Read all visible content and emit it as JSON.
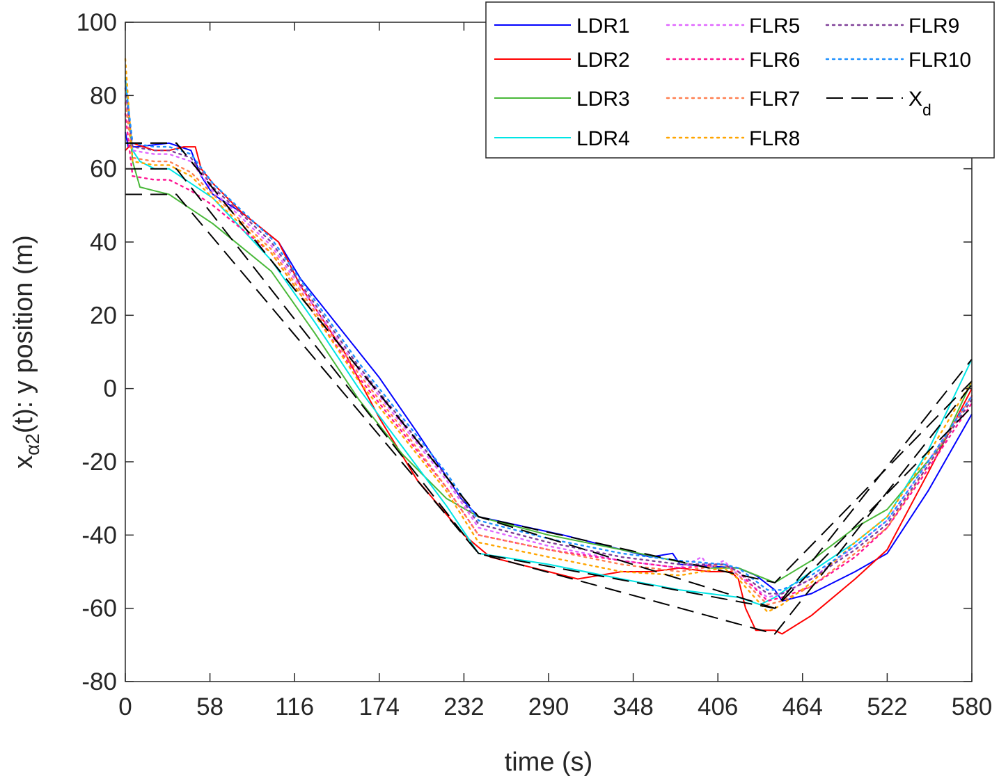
{
  "chart_data": {
    "type": "line",
    "title": "",
    "xlabel": "time (s)",
    "ylabel": {
      "main": "x",
      "sub": "α2",
      "rest": "(t): y position (m)"
    },
    "xlim": [
      0,
      580
    ],
    "ylim": [
      -80,
      100
    ],
    "xticks": [
      0,
      58,
      116,
      174,
      232,
      290,
      348,
      406,
      464,
      522,
      580
    ],
    "yticks": [
      -80,
      -60,
      -40,
      -20,
      0,
      20,
      40,
      60,
      80,
      100
    ],
    "xtick_labels": [
      "0",
      "58",
      "116",
      "174",
      "232",
      "290",
      "348",
      "406",
      "464",
      "522",
      "580"
    ],
    "ytick_labels": [
      "-80",
      "-60",
      "-40",
      "-20",
      "0",
      "20",
      "40",
      "60",
      "80",
      "100"
    ],
    "legend_position": "top-right",
    "series": [
      {
        "name": "LDR1",
        "style": "solid",
        "color": "#0000ff",
        "x": [
          0,
          2,
          8,
          30,
          45,
          52,
          60,
          80,
          105,
          120,
          150,
          174,
          200,
          230,
          242,
          300,
          360,
          375,
          380,
          420,
          432,
          445,
          450,
          470,
          500,
          522,
          550,
          580
        ],
        "y": [
          70,
          66,
          66,
          67,
          65,
          58,
          53,
          48,
          40,
          30,
          15,
          3,
          -12,
          -30,
          -35,
          -40,
          -46,
          -45,
          -48,
          -49,
          -51,
          -55,
          -58,
          -56,
          -50,
          -45,
          -28,
          -7
        ]
      },
      {
        "name": "LDR2",
        "style": "solid",
        "color": "#ff0000",
        "x": [
          0,
          5,
          20,
          30,
          40,
          48,
          52,
          60,
          80,
          105,
          120,
          150,
          174,
          200,
          232,
          250,
          270,
          290,
          310,
          340,
          360,
          380,
          400,
          415,
          420,
          425,
          432,
          445,
          450,
          470,
          500,
          522,
          550,
          580
        ],
        "y": [
          65,
          67,
          65,
          65,
          66,
          66,
          60,
          56,
          48,
          40,
          28,
          10,
          -8,
          -25,
          -40,
          -46,
          -48,
          -50,
          -52,
          -50,
          -50,
          -49,
          -50,
          -50,
          -52,
          -60,
          -66,
          -66,
          -67,
          -62,
          -52,
          -44,
          -23,
          0
        ]
      },
      {
        "name": "LDR3",
        "style": "solid",
        "color": "#49b839",
        "x": [
          0,
          5,
          10,
          20,
          30,
          60,
          100,
          130,
          160,
          190,
          220,
          242,
          290,
          340,
          400,
          420,
          445,
          470,
          500,
          522,
          560,
          580
        ],
        "y": [
          85,
          62,
          55,
          54,
          53,
          45,
          32,
          15,
          -3,
          -18,
          -30,
          -35,
          -40,
          -44,
          -49,
          -49,
          -53,
          -47,
          -38,
          -33,
          -15,
          2
        ]
      },
      {
        "name": "LDR4",
        "style": "solid",
        "color": "#00e5e5",
        "x": [
          0,
          5,
          10,
          20,
          30,
          45,
          60,
          100,
          130,
          160,
          190,
          220,
          242,
          290,
          340,
          380,
          420,
          435,
          445,
          470,
          500,
          522,
          550,
          580
        ],
        "y": [
          85,
          65,
          62,
          60,
          60,
          56,
          52,
          35,
          18,
          0,
          -16,
          -32,
          -45,
          -48,
          -52,
          -55,
          -57,
          -59,
          -57,
          -50,
          -42,
          -35,
          -17,
          8
        ]
      },
      {
        "name": "FLR5",
        "style": "dotted",
        "color": "#e066ff",
        "x": [
          0,
          5,
          20,
          30,
          45,
          60,
          100,
          130,
          160,
          190,
          220,
          242,
          290,
          340,
          380,
          395,
          400,
          410,
          420,
          440,
          450,
          470,
          500,
          522,
          550,
          580
        ],
        "y": [
          80,
          65,
          64,
          64,
          62,
          54,
          39,
          22,
          5,
          -10,
          -25,
          -38,
          -43,
          -47,
          -49,
          -46,
          -49,
          -47,
          -51,
          -57,
          -56,
          -52,
          -43,
          -36,
          -20,
          -2
        ]
      },
      {
        "name": "FLR6",
        "style": "dotted",
        "color": "#ff1493",
        "x": [
          0,
          5,
          20,
          30,
          45,
          60,
          100,
          130,
          160,
          190,
          220,
          242,
          290,
          340,
          380,
          410,
          420,
          440,
          450,
          470,
          500,
          522,
          550,
          580
        ],
        "y": [
          75,
          58,
          57,
          57,
          54,
          50,
          37,
          20,
          3,
          -12,
          -27,
          -40,
          -44,
          -47,
          -49,
          -48,
          -50,
          -58,
          -57,
          -54,
          -46,
          -38,
          -22,
          -4
        ]
      },
      {
        "name": "FLR7",
        "style": "dotted",
        "color": "#ff7f50",
        "x": [
          0,
          5,
          20,
          30,
          45,
          60,
          100,
          130,
          160,
          190,
          220,
          242,
          290,
          340,
          380,
          410,
          420,
          440,
          450,
          470,
          500,
          522,
          550,
          580
        ],
        "y": [
          78,
          63,
          62,
          62,
          59,
          53,
          38,
          21,
          4,
          -11,
          -27,
          -40,
          -44,
          -48,
          -50,
          -48,
          -51,
          -59,
          -58,
          -54,
          -45,
          -38,
          -21,
          -2
        ]
      },
      {
        "name": "FLR8",
        "style": "dotted",
        "color": "#ffa500",
        "x": [
          0,
          5,
          20,
          30,
          45,
          60,
          100,
          130,
          160,
          190,
          220,
          242,
          290,
          340,
          380,
          410,
          420,
          440,
          450,
          470,
          500,
          522,
          550,
          580
        ],
        "y": [
          90,
          62,
          61,
          61,
          58,
          52,
          37,
          20,
          2,
          -13,
          -28,
          -42,
          -46,
          -50,
          -51,
          -49,
          -52,
          -61,
          -59,
          -53,
          -42,
          -35,
          -18,
          2
        ]
      },
      {
        "name": "FLR9",
        "style": "dotted",
        "color": "#7f3f98",
        "x": [
          0,
          5,
          20,
          30,
          45,
          60,
          100,
          130,
          160,
          190,
          220,
          242,
          290,
          340,
          380,
          410,
          420,
          440,
          450,
          470,
          500,
          522,
          550,
          580
        ],
        "y": [
          82,
          66,
          65,
          65,
          63,
          55,
          40,
          23,
          6,
          -9,
          -24,
          -37,
          -42,
          -46,
          -48,
          -48,
          -50,
          -56,
          -56,
          -52,
          -44,
          -37,
          -21,
          -3
        ]
      },
      {
        "name": "FLR10",
        "style": "dotted",
        "color": "#1e90ff",
        "x": [
          0,
          5,
          20,
          30,
          45,
          60,
          100,
          130,
          160,
          190,
          220,
          242,
          290,
          340,
          380,
          410,
          420,
          440,
          450,
          470,
          500,
          522,
          550,
          580
        ],
        "y": [
          84,
          67,
          66,
          66,
          64,
          56,
          41,
          24,
          7,
          -8,
          -23,
          -36,
          -41,
          -45,
          -47,
          -48,
          -49,
          -55,
          -55,
          -51,
          -43,
          -36,
          -20,
          -2
        ]
      },
      {
        "name": "X_d",
        "label_main": "X",
        "label_sub": "d",
        "style": "dashed",
        "color": "#000000",
        "x": [
          0,
          35,
          242,
          445,
          580
        ],
        "y": [
          67,
          67,
          -35,
          -53,
          2
        ]
      },
      {
        "name": "X_d_2",
        "style": "dashed",
        "color": "#000000",
        "x": [
          0,
          35,
          242,
          445,
          580
        ],
        "y": [
          60,
          60,
          -45,
          -60,
          8
        ]
      },
      {
        "name": "X_d_3",
        "style": "dashed",
        "color": "#000000",
        "x": [
          0,
          35,
          242,
          445,
          580
        ],
        "y": [
          53,
          53,
          -45,
          -67,
          1
        ]
      },
      {
        "name": "X_d_4",
        "style": "dashed",
        "color": "#000000",
        "x": [
          0,
          35,
          242,
          445,
          580
        ],
        "y": [
          67,
          67,
          -35,
          -60,
          -5
        ]
      }
    ],
    "legend": [
      {
        "label": "LDR1",
        "series": 0,
        "col": 0,
        "row": 0
      },
      {
        "label": "LDR2",
        "series": 1,
        "col": 0,
        "row": 1
      },
      {
        "label": "LDR3",
        "series": 2,
        "col": 0,
        "row": 2
      },
      {
        "label": "LDR4",
        "series": 3,
        "col": 0,
        "row": 3
      },
      {
        "label": "FLR5",
        "series": 4,
        "col": 1,
        "row": 0
      },
      {
        "label": "FLR6",
        "series": 5,
        "col": 1,
        "row": 1
      },
      {
        "label": "FLR7",
        "series": 6,
        "col": 1,
        "row": 2
      },
      {
        "label": "FLR8",
        "series": 7,
        "col": 1,
        "row": 3
      },
      {
        "label": "FLR9",
        "series": 8,
        "col": 2,
        "row": 0
      },
      {
        "label": "FLR10",
        "series": 9,
        "col": 2,
        "row": 1
      },
      {
        "label": "X",
        "sub": "d",
        "series": 10,
        "col": 2,
        "row": 2
      }
    ]
  }
}
